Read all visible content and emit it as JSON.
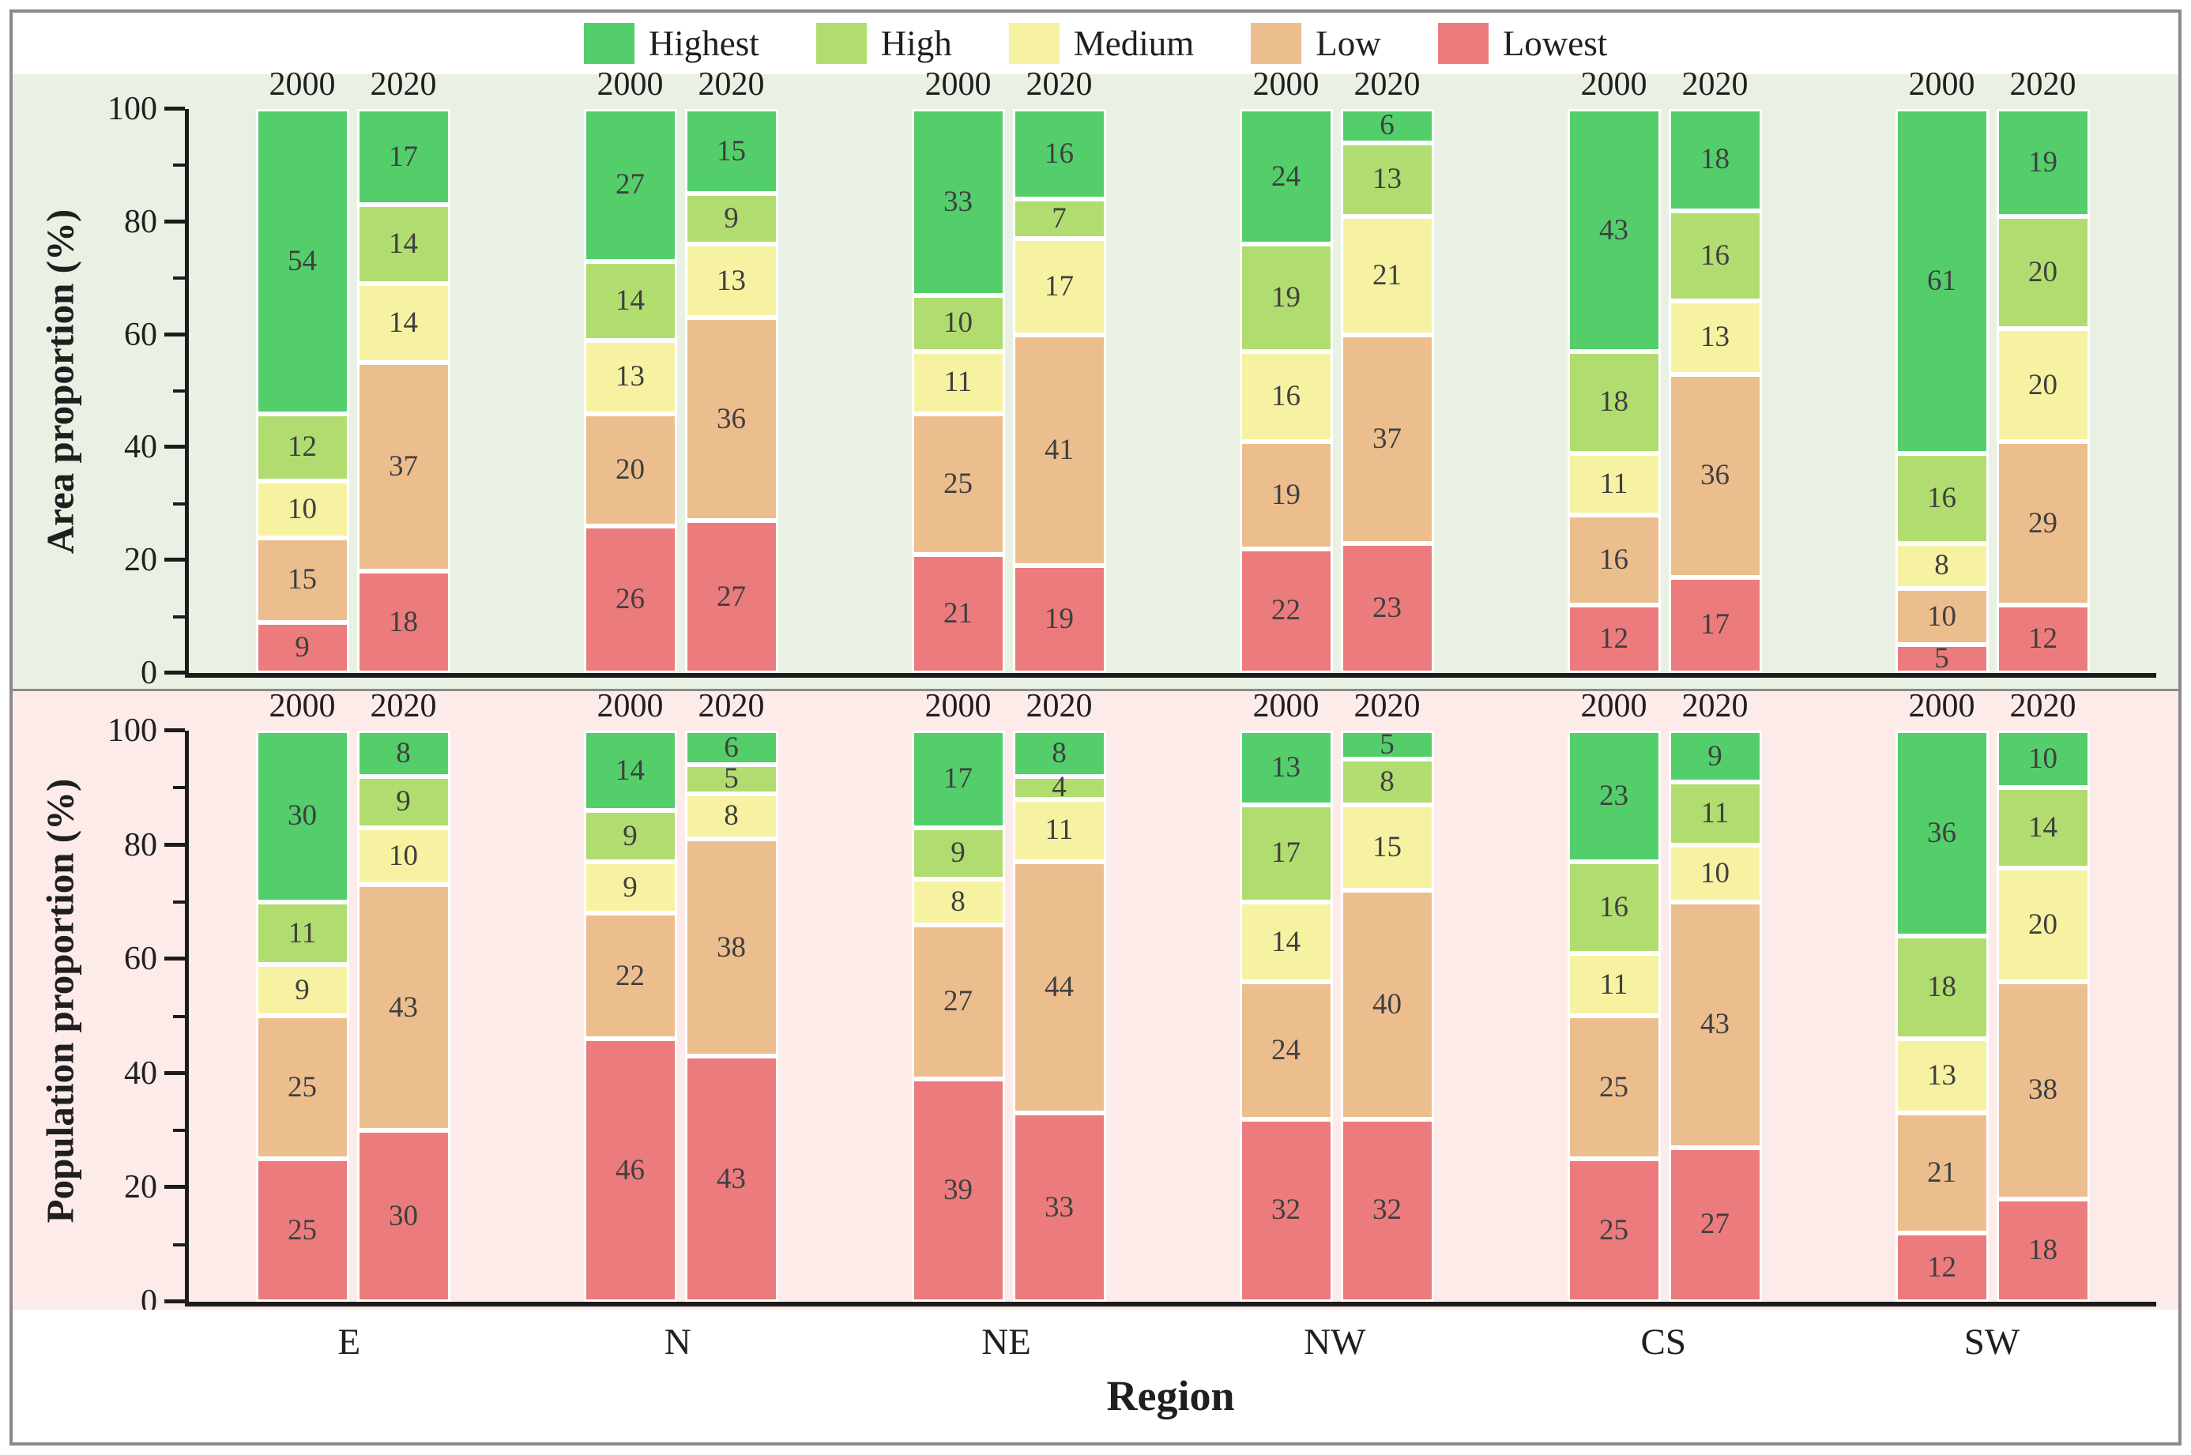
{
  "legend": {
    "items": [
      {
        "label": "Highest",
        "color": "#53ce6b"
      },
      {
        "label": "High",
        "color": "#b1dc6f"
      },
      {
        "label": "Medium",
        "color": "#f6f2a2"
      },
      {
        "label": "Low",
        "color": "#ecbe8e"
      },
      {
        "label": "Lowest",
        "color": "#ec7b7d"
      }
    ]
  },
  "colors": {
    "Highest": "#53ce6b",
    "High": "#b1dc6f",
    "Medium": "#f6f2a2",
    "Low": "#ecbe8e",
    "Lowest": "#ec7b7d",
    "panel_area_bg": "#e9f1e4",
    "panel_pop_bg": "#fcebe9",
    "axis": "#1c1c1c",
    "frame_border": "#8a8a8a"
  },
  "chart_data": [
    {
      "type": "bar",
      "stacked": true,
      "ylabel": "Area proportion (%)",
      "xlabel": "Region",
      "ylim": [
        0,
        100
      ],
      "yticks_major": [
        0,
        20,
        40,
        60,
        80,
        100
      ],
      "yticks_minor": [
        10,
        30,
        50,
        70,
        90
      ],
      "categories": [
        "E",
        "N",
        "NE",
        "NW",
        "CS",
        "SW"
      ],
      "years": [
        "2000",
        "2020"
      ],
      "levels_bottom_to_top": [
        "Lowest",
        "Low",
        "Medium",
        "High",
        "Highest"
      ],
      "values": {
        "E": {
          "2000": {
            "Lowest": 9,
            "Low": 15,
            "Medium": 10,
            "High": 12,
            "Highest": 54
          },
          "2020": {
            "Lowest": 18,
            "Low": 37,
            "Medium": 14,
            "High": 14,
            "Highest": 17
          }
        },
        "N": {
          "2000": {
            "Lowest": 26,
            "Low": 20,
            "Medium": 13,
            "High": 14,
            "Highest": 27
          },
          "2020": {
            "Lowest": 27,
            "Low": 36,
            "Medium": 13,
            "High": 9,
            "Highest": 15
          }
        },
        "NE": {
          "2000": {
            "Lowest": 21,
            "Low": 25,
            "Medium": 11,
            "High": 10,
            "Highest": 33
          },
          "2020": {
            "Lowest": 19,
            "Low": 41,
            "Medium": 17,
            "High": 7,
            "Highest": 16
          }
        },
        "NW": {
          "2000": {
            "Lowest": 22,
            "Low": 19,
            "Medium": 16,
            "High": 19,
            "Highest": 24
          },
          "2020": {
            "Lowest": 23,
            "Low": 37,
            "Medium": 21,
            "High": 13,
            "Highest": 6
          }
        },
        "CS": {
          "2000": {
            "Lowest": 12,
            "Low": 16,
            "Medium": 11,
            "High": 18,
            "Highest": 43
          },
          "2020": {
            "Lowest": 17,
            "Low": 36,
            "Medium": 13,
            "High": 16,
            "Highest": 18
          }
        },
        "SW": {
          "2000": {
            "Lowest": 5,
            "Low": 10,
            "Medium": 8,
            "High": 16,
            "Highest": 61
          },
          "2020": {
            "Lowest": 12,
            "Low": 29,
            "Medium": 20,
            "High": 20,
            "Highest": 19
          }
        }
      }
    },
    {
      "type": "bar",
      "stacked": true,
      "ylabel": "Population proportion (%)",
      "xlabel": "Region",
      "ylim": [
        0,
        100
      ],
      "yticks_major": [
        0,
        20,
        40,
        60,
        80,
        100
      ],
      "yticks_minor": [
        10,
        30,
        50,
        70,
        90
      ],
      "categories": [
        "E",
        "N",
        "NE",
        "NW",
        "CS",
        "SW"
      ],
      "years": [
        "2000",
        "2020"
      ],
      "levels_bottom_to_top": [
        "Lowest",
        "Low",
        "Medium",
        "High",
        "Highest"
      ],
      "values": {
        "E": {
          "2000": {
            "Lowest": 25,
            "Low": 25,
            "Medium": 9,
            "High": 11,
            "Highest": 30
          },
          "2020": {
            "Lowest": 30,
            "Low": 43,
            "Medium": 10,
            "High": 9,
            "Highest": 8
          }
        },
        "N": {
          "2000": {
            "Lowest": 46,
            "Low": 22,
            "Medium": 9,
            "High": 9,
            "Highest": 14
          },
          "2020": {
            "Lowest": 43,
            "Low": 38,
            "Medium": 8,
            "High": 5,
            "Highest": 6
          }
        },
        "NE": {
          "2000": {
            "Lowest": 39,
            "Low": 27,
            "Medium": 8,
            "High": 9,
            "Highest": 17
          },
          "2020": {
            "Lowest": 33,
            "Low": 44,
            "Medium": 11,
            "High": 4,
            "Highest": 8
          }
        },
        "NW": {
          "2000": {
            "Lowest": 32,
            "Low": 24,
            "Medium": 14,
            "High": 17,
            "Highest": 13
          },
          "2020": {
            "Lowest": 32,
            "Low": 40,
            "Medium": 15,
            "High": 8,
            "Highest": 5
          }
        },
        "CS": {
          "2000": {
            "Lowest": 25,
            "Low": 25,
            "Medium": 11,
            "High": 16,
            "Highest": 23
          },
          "2020": {
            "Lowest": 27,
            "Low": 43,
            "Medium": 10,
            "High": 11,
            "Highest": 9
          }
        },
        "SW": {
          "2000": {
            "Lowest": 12,
            "Low": 21,
            "Medium": 13,
            "High": 18,
            "Highest": 36
          },
          "2020": {
            "Lowest": 18,
            "Low": 38,
            "Medium": 20,
            "High": 14,
            "Highest": 10
          }
        }
      }
    }
  ],
  "xaxis": {
    "label": "Region",
    "regions": [
      "E",
      "N",
      "NE",
      "NW",
      "CS",
      "SW"
    ]
  }
}
